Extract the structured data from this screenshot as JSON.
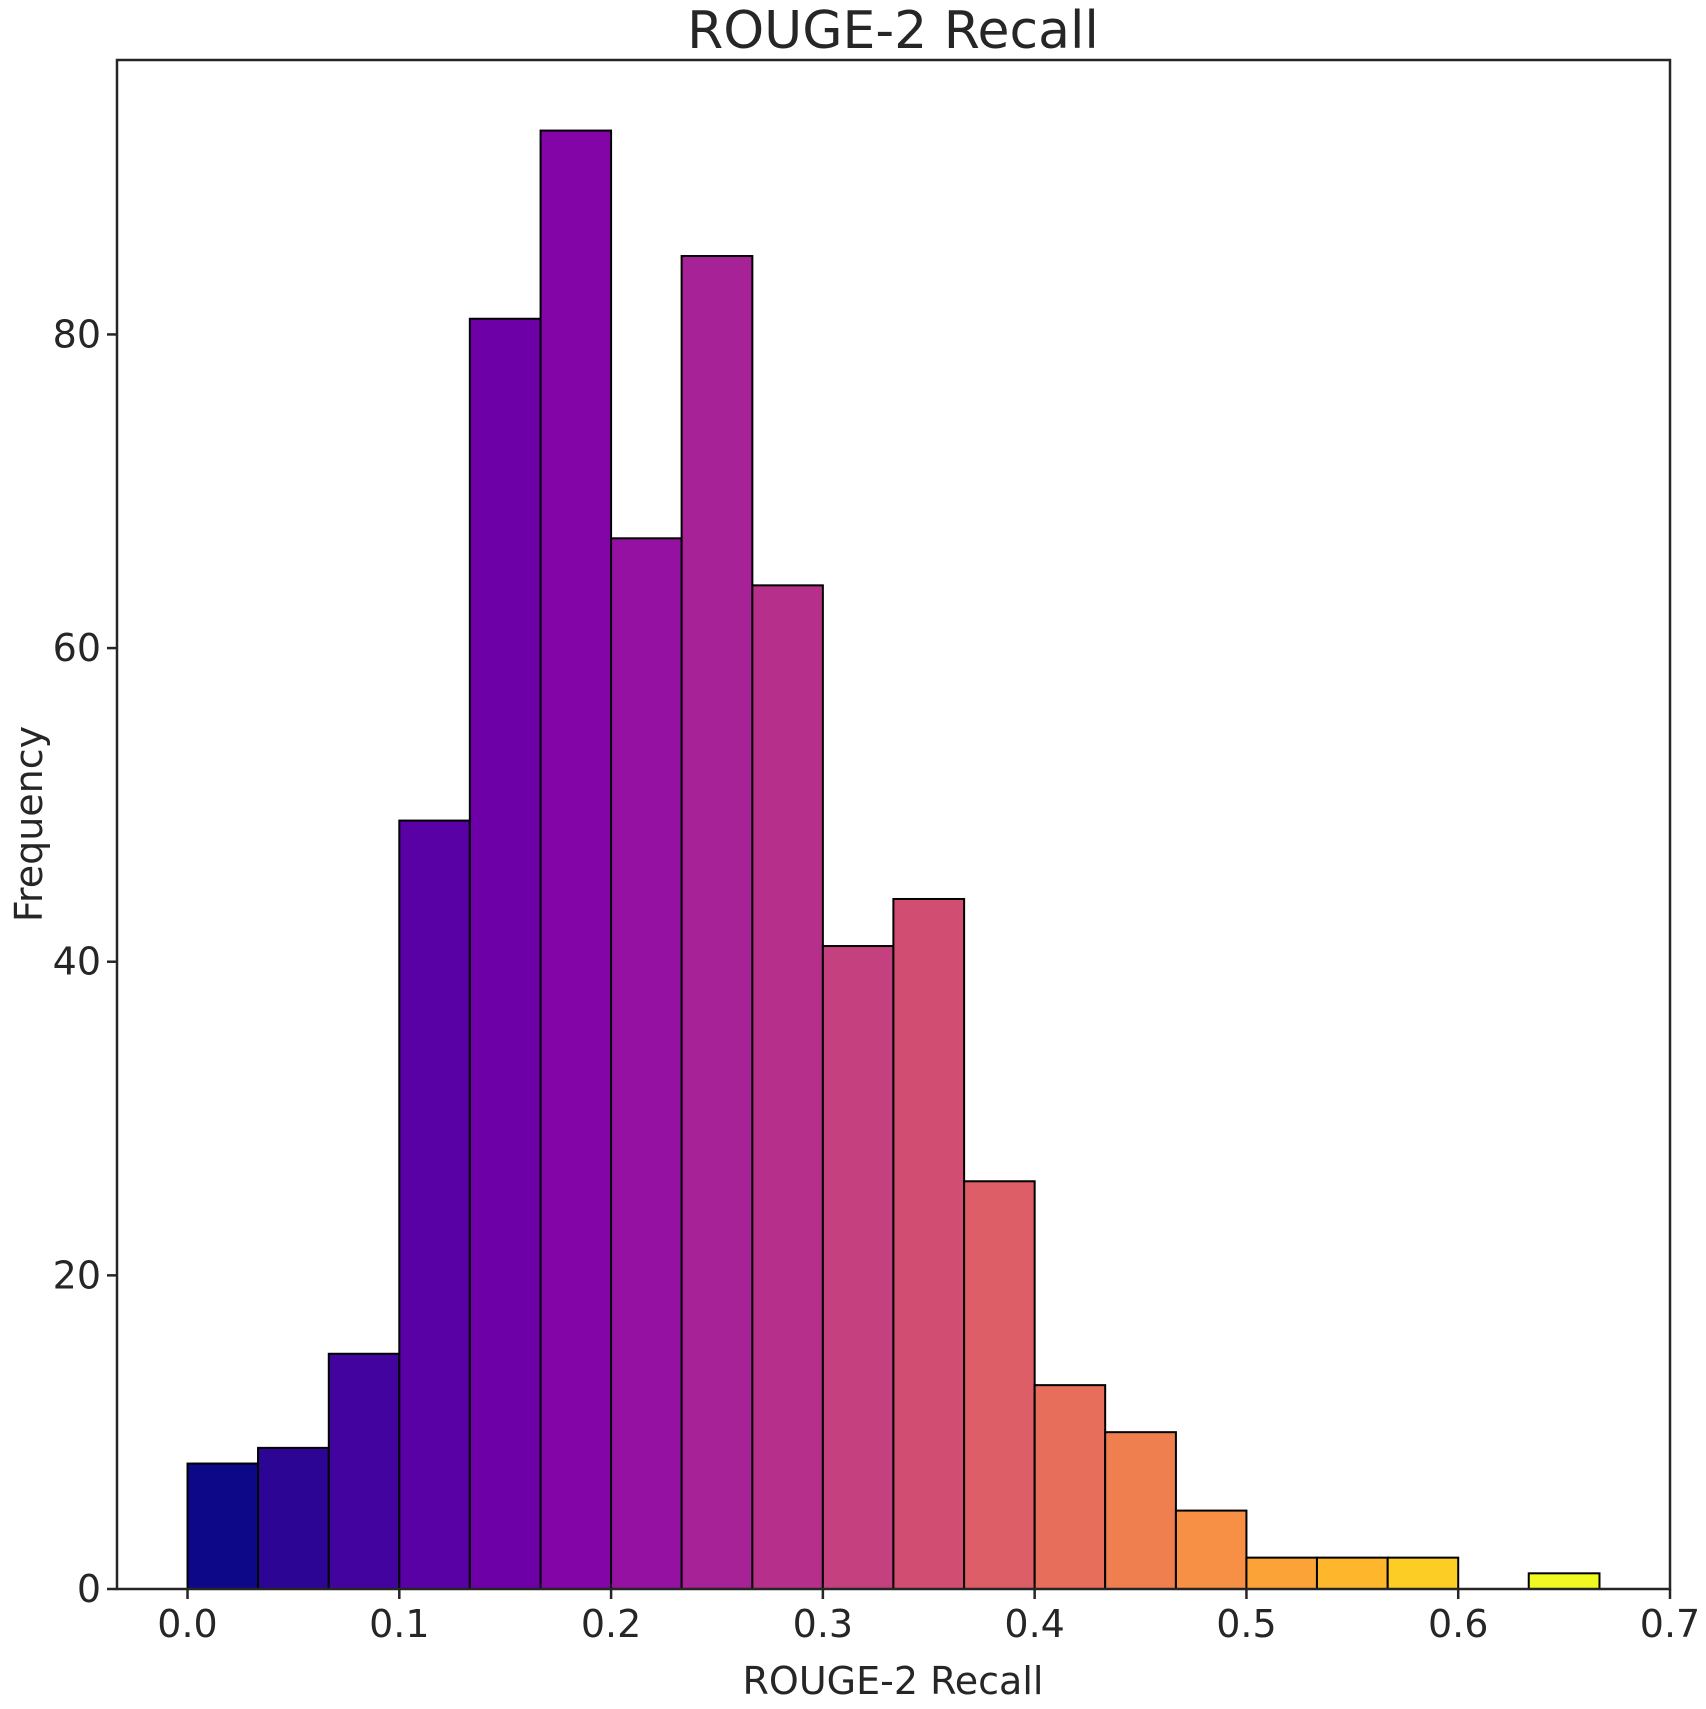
{
  "chart_data": {
    "type": "bar",
    "title": "ROUGE-2 Recall",
    "xlabel": "ROUGE-2 Recall",
    "ylabel": "Frequency",
    "xlim": [
      -0.0333,
      0.7
    ],
    "ylim": [
      0,
      97.5
    ],
    "grid": false,
    "legend": "none",
    "x_ticks": [
      0.0,
      0.1,
      0.2,
      0.3,
      0.4,
      0.5,
      0.6,
      0.7
    ],
    "x_tick_labels": [
      "0.0",
      "0.1",
      "0.2",
      "0.3",
      "0.4",
      "0.5",
      "0.6",
      "0.7"
    ],
    "y_ticks": [
      0,
      20,
      40,
      60,
      80
    ],
    "y_tick_labels": [
      "0",
      "20",
      "40",
      "60",
      "80"
    ],
    "bin_edges": [
      0.0,
      0.0333,
      0.0667,
      0.1,
      0.1333,
      0.1667,
      0.2,
      0.2333,
      0.2667,
      0.3,
      0.3333,
      0.3667,
      0.4,
      0.4333,
      0.4667,
      0.5,
      0.5333,
      0.5667,
      0.6,
      0.6333,
      0.6667
    ],
    "values": [
      8,
      9,
      15,
      49,
      81,
      93,
      67,
      85,
      64,
      41,
      44,
      26,
      13,
      10,
      5,
      2,
      2,
      2,
      0,
      1
    ],
    "colors": [
      "#0d0887",
      "#2c0594",
      "#43039e",
      "#5901a5",
      "#6e00a8",
      "#8305a7",
      "#9511a1",
      "#a72197",
      "#b6308b",
      "#c5407e",
      "#d14e72",
      "#dd5e66",
      "#e76e5b",
      "#f07f4f",
      "#f79044",
      "#fca338",
      "#feb72d",
      "#fccd25",
      "#f7e225",
      "#f0f921"
    ]
  }
}
